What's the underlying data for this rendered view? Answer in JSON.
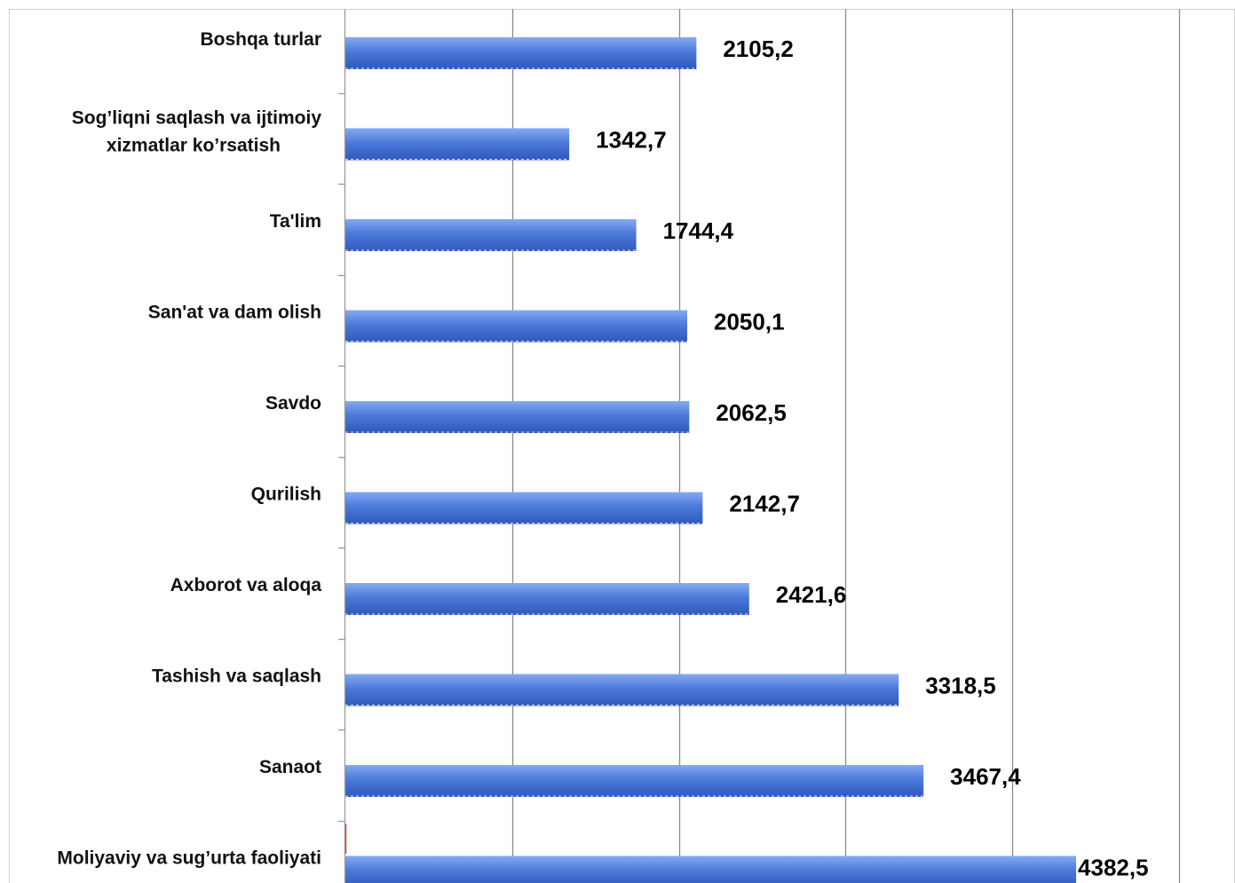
{
  "chart_data": {
    "type": "bar",
    "orientation": "horizontal",
    "categories": [
      "Boshqa  turlar",
      "Sog’liqni saqlash  va ijtimoiy xizmatlar ko’rsatish",
      "Ta'lim",
      "San'at va dam olish",
      "Savdo",
      "Qurilish",
      "Axborot va aloqa",
      "Tashish va saqlash",
      "Sanaot",
      "Moliyaviy  va sug’urta faoliyati"
    ],
    "category_lines": [
      [
        "Boshqa  turlar"
      ],
      [
        "Sog’liqni saqlash  va ijtimoiy",
        "xizmatlar ko’rsatish"
      ],
      [
        "Ta'lim"
      ],
      [
        "San'at va dam olish"
      ],
      [
        "Savdo"
      ],
      [
        "Qurilish"
      ],
      [
        "Axborot va aloqa"
      ],
      [
        "Tashish va saqlash"
      ],
      [
        "Sanaot"
      ],
      [
        "Moliyaviy  va sug’urta faoliyati"
      ]
    ],
    "values": [
      2105.2,
      1342.7,
      1744.4,
      2050.1,
      2062.5,
      2142.7,
      2421.6,
      3318.5,
      3467.4,
      4382.5
    ],
    "value_labels": [
      "2105,2",
      "1342,7",
      "1744,4",
      "2050,1",
      "2062,5",
      "2142,7",
      "2421,6",
      "3318,5",
      "3467,4",
      "4382,5"
    ],
    "xlim": [
      0,
      5000
    ],
    "x_gridlines": [
      1000,
      2000,
      3000,
      4000,
      5000
    ],
    "grid": true,
    "colors": {
      "bar": "#4a78d8",
      "bar_light": "#7ea4f0",
      "bar_dark": "#2f57b8",
      "grid": "#8a8a8a",
      "accent": "#c0504d"
    }
  }
}
